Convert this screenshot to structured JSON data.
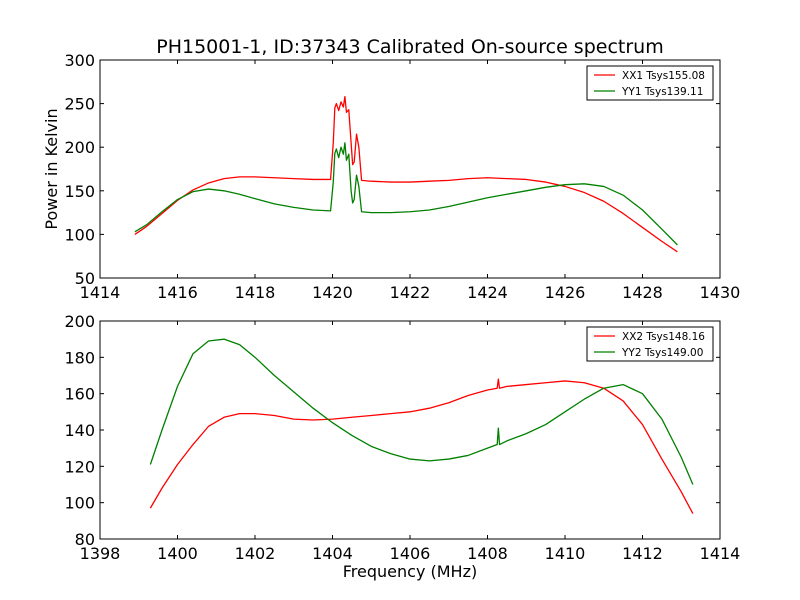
{
  "title": "PH15001-1, ID:37343 Calibrated On-source spectrum",
  "chart_data": [
    {
      "type": "line",
      "xlabel": "",
      "ylabel": "Power in Kelvin",
      "xlim": [
        1414,
        1430
      ],
      "ylim": [
        50,
        300
      ],
      "xticks": [
        1414,
        1416,
        1418,
        1420,
        1422,
        1424,
        1426,
        1428,
        1430
      ],
      "yticks": [
        50,
        100,
        150,
        200,
        250,
        300
      ],
      "grid": false,
      "legend_position": "top-right",
      "series": [
        {
          "name": "XX1 Tsys155.08",
          "color": "#ff0000",
          "points": [
            [
              1414.9,
              100
            ],
            [
              1415.2,
              109
            ],
            [
              1415.6,
              124
            ],
            [
              1416.0,
              139
            ],
            [
              1416.4,
              151
            ],
            [
              1416.8,
              159
            ],
            [
              1417.2,
              164
            ],
            [
              1417.6,
              166
            ],
            [
              1418.0,
              166
            ],
            [
              1418.5,
              165
            ],
            [
              1419.0,
              164
            ],
            [
              1419.5,
              163
            ],
            [
              1419.95,
              163
            ],
            [
              1420.02,
              205
            ],
            [
              1420.06,
              245
            ],
            [
              1420.1,
              250
            ],
            [
              1420.16,
              242
            ],
            [
              1420.22,
              252
            ],
            [
              1420.28,
              246
            ],
            [
              1420.32,
              258
            ],
            [
              1420.36,
              240
            ],
            [
              1420.42,
              243
            ],
            [
              1420.48,
              205
            ],
            [
              1420.52,
              180
            ],
            [
              1420.56,
              183
            ],
            [
              1420.62,
              215
            ],
            [
              1420.68,
              200
            ],
            [
              1420.75,
              162
            ],
            [
              1421.0,
              161
            ],
            [
              1421.5,
              160
            ],
            [
              1422.0,
              160
            ],
            [
              1422.5,
              161
            ],
            [
              1423.0,
              162
            ],
            [
              1423.5,
              164
            ],
            [
              1424.0,
              165
            ],
            [
              1424.5,
              164
            ],
            [
              1425.0,
              163
            ],
            [
              1425.5,
              160
            ],
            [
              1426.0,
              155
            ],
            [
              1426.5,
              148
            ],
            [
              1427.0,
              138
            ],
            [
              1427.5,
              124
            ],
            [
              1428.0,
              108
            ],
            [
              1428.5,
              92
            ],
            [
              1428.9,
              80
            ]
          ]
        },
        {
          "name": "YY1 Tsys139.11",
          "color": "#008000",
          "points": [
            [
              1414.9,
              103
            ],
            [
              1415.2,
              111
            ],
            [
              1415.6,
              126
            ],
            [
              1416.0,
              140
            ],
            [
              1416.4,
              149
            ],
            [
              1416.8,
              152
            ],
            [
              1417.2,
              150
            ],
            [
              1417.6,
              146
            ],
            [
              1418.0,
              141
            ],
            [
              1418.5,
              135
            ],
            [
              1419.0,
              131
            ],
            [
              1419.5,
              128
            ],
            [
              1419.95,
              127
            ],
            [
              1420.02,
              160
            ],
            [
              1420.06,
              193
            ],
            [
              1420.1,
              198
            ],
            [
              1420.16,
              188
            ],
            [
              1420.22,
              200
            ],
            [
              1420.28,
              192
            ],
            [
              1420.32,
              205
            ],
            [
              1420.36,
              185
            ],
            [
              1420.42,
              192
            ],
            [
              1420.48,
              150
            ],
            [
              1420.52,
              136
            ],
            [
              1420.56,
              140
            ],
            [
              1420.62,
              168
            ],
            [
              1420.68,
              155
            ],
            [
              1420.75,
              126
            ],
            [
              1421.0,
              125
            ],
            [
              1421.5,
              125
            ],
            [
              1422.0,
              126
            ],
            [
              1422.5,
              128
            ],
            [
              1423.0,
              132
            ],
            [
              1423.5,
              137
            ],
            [
              1424.0,
              142
            ],
            [
              1424.5,
              146
            ],
            [
              1425.0,
              150
            ],
            [
              1425.5,
              154
            ],
            [
              1426.0,
              157
            ],
            [
              1426.5,
              158
            ],
            [
              1427.0,
              155
            ],
            [
              1427.5,
              145
            ],
            [
              1428.0,
              128
            ],
            [
              1428.5,
              106
            ],
            [
              1428.9,
              88
            ]
          ]
        }
      ]
    },
    {
      "type": "line",
      "xlabel": "Frequency (MHz)",
      "ylabel": "",
      "xlim": [
        1398,
        1414
      ],
      "ylim": [
        80,
        200
      ],
      "xticks": [
        1398,
        1400,
        1402,
        1404,
        1406,
        1408,
        1410,
        1412,
        1414
      ],
      "yticks": [
        80,
        100,
        120,
        140,
        160,
        180,
        200
      ],
      "grid": false,
      "legend_position": "top-right",
      "series": [
        {
          "name": "XX2 Tsys148.16",
          "color": "#ff0000",
          "points": [
            [
              1399.3,
              97
            ],
            [
              1399.6,
              108
            ],
            [
              1400.0,
              121
            ],
            [
              1400.4,
              132
            ],
            [
              1400.8,
              142
            ],
            [
              1401.2,
              147
            ],
            [
              1401.6,
              149
            ],
            [
              1402.0,
              149
            ],
            [
              1402.5,
              148
            ],
            [
              1403.0,
              146
            ],
            [
              1403.5,
              145.5
            ],
            [
              1404.0,
              146
            ],
            [
              1404.5,
              147
            ],
            [
              1405.0,
              148
            ],
            [
              1405.5,
              149
            ],
            [
              1406.0,
              150
            ],
            [
              1406.5,
              152
            ],
            [
              1407.0,
              155
            ],
            [
              1407.5,
              159
            ],
            [
              1408.0,
              162
            ],
            [
              1408.25,
              163
            ],
            [
              1408.28,
              168
            ],
            [
              1408.31,
              163
            ],
            [
              1408.5,
              164
            ],
            [
              1409.0,
              165
            ],
            [
              1409.5,
              166
            ],
            [
              1410.0,
              167
            ],
            [
              1410.5,
              166
            ],
            [
              1411.0,
              163
            ],
            [
              1411.5,
              156
            ],
            [
              1412.0,
              143
            ],
            [
              1412.5,
              124
            ],
            [
              1413.0,
              106
            ],
            [
              1413.3,
              94
            ]
          ]
        },
        {
          "name": "YY2 Tsys149.00",
          "color": "#008000",
          "points": [
            [
              1399.3,
              121
            ],
            [
              1399.6,
              140
            ],
            [
              1400.0,
              164
            ],
            [
              1400.4,
              182
            ],
            [
              1400.8,
              189
            ],
            [
              1401.2,
              190
            ],
            [
              1401.6,
              187
            ],
            [
              1402.0,
              180
            ],
            [
              1402.5,
              170
            ],
            [
              1403.0,
              161
            ],
            [
              1403.5,
              152
            ],
            [
              1404.0,
              144
            ],
            [
              1404.5,
              137
            ],
            [
              1405.0,
              131
            ],
            [
              1405.5,
              127
            ],
            [
              1406.0,
              124
            ],
            [
              1406.5,
              123
            ],
            [
              1407.0,
              124
            ],
            [
              1407.5,
              126
            ],
            [
              1408.0,
              130
            ],
            [
              1408.25,
              132
            ],
            [
              1408.28,
              141
            ],
            [
              1408.31,
              132
            ],
            [
              1408.5,
              134
            ],
            [
              1409.0,
              138
            ],
            [
              1409.5,
              143
            ],
            [
              1410.0,
              150
            ],
            [
              1410.5,
              157
            ],
            [
              1411.0,
              163
            ],
            [
              1411.5,
              165
            ],
            [
              1412.0,
              160
            ],
            [
              1412.5,
              146
            ],
            [
              1413.0,
              125
            ],
            [
              1413.3,
              110
            ]
          ]
        }
      ]
    }
  ]
}
